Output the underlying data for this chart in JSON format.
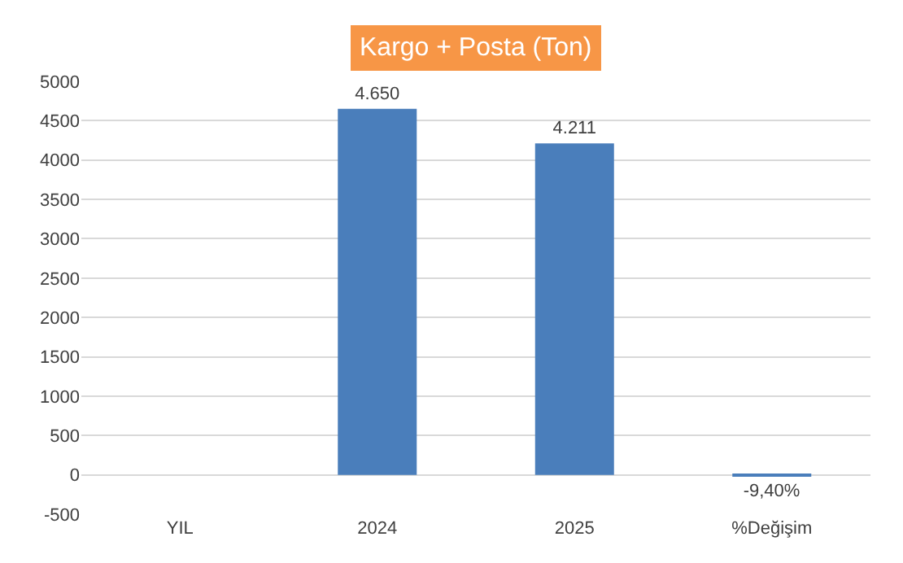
{
  "chart_data": {
    "type": "bar",
    "title": "Kargo + Posta (Ton)",
    "categories": [
      "YIL",
      "2024",
      "2025",
      "%Değişim"
    ],
    "series": [
      {
        "color": "#4a7ebb",
        "values": [
          null,
          4650,
          4211,
          -9.4
        ],
        "value_labels": [
          null,
          "4.650",
          "4.211",
          "-9,40%"
        ]
      }
    ],
    "ylim": [
      -500,
      5000
    ],
    "yticks": [
      -500,
      0,
      500,
      1000,
      1500,
      2000,
      2500,
      3000,
      3500,
      4000,
      4500,
      5000
    ],
    "grid": "y",
    "legend": false
  }
}
